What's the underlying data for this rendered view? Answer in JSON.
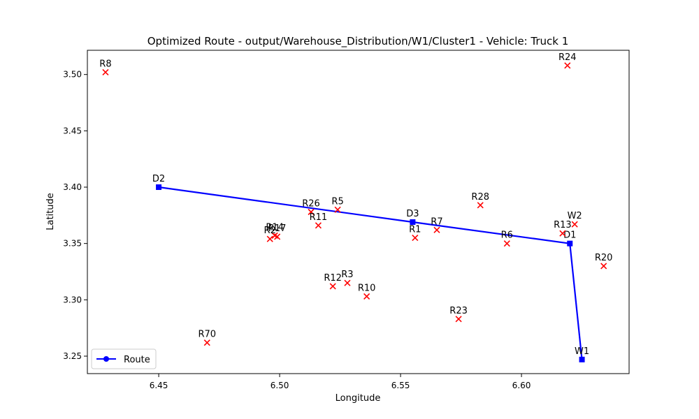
{
  "chart_data": {
    "type": "scatter",
    "title": "Optimized Route - output/Warehouse_Distribution/W1/Cluster1 - Vehicle: Truck 1",
    "xlabel": "Longitude",
    "ylabel": "Latitude",
    "xlim": [
      6.4205,
      6.6445
    ],
    "ylim": [
      3.2345,
      3.5215
    ],
    "xticks": [
      "6.45",
      "6.50",
      "6.55",
      "6.60"
    ],
    "xtick_values": [
      6.45,
      6.5,
      6.55,
      6.6
    ],
    "yticks": [
      "3.25",
      "3.30",
      "3.35",
      "3.40",
      "3.45",
      "3.50"
    ],
    "ytick_values": [
      3.25,
      3.3,
      3.35,
      3.4,
      3.45,
      3.5
    ],
    "grid": false,
    "legend": {
      "position": "lower-left",
      "entries": [
        "Route"
      ]
    },
    "colors": {
      "route": "#0000ff",
      "points": "#ff0000"
    },
    "route": {
      "name": "Route",
      "points": [
        {
          "label": "D2",
          "x": 6.45,
          "y": 3.4
        },
        {
          "label": "D3",
          "x": 6.555,
          "y": 3.369
        },
        {
          "label": "D1",
          "x": 6.62,
          "y": 3.35
        },
        {
          "label": "W1",
          "x": 6.625,
          "y": 3.247
        }
      ]
    },
    "points": [
      {
        "label": "R8",
        "x": 6.428,
        "y": 3.502
      },
      {
        "label": "R24",
        "x": 6.619,
        "y": 3.508
      },
      {
        "label": "R28",
        "x": 6.583,
        "y": 3.384
      },
      {
        "label": "R26",
        "x": 6.513,
        "y": 3.378
      },
      {
        "label": "R5",
        "x": 6.524,
        "y": 3.38
      },
      {
        "label": "R11",
        "x": 6.516,
        "y": 3.366
      },
      {
        "label": "R14",
        "x": 6.498,
        "y": 3.357
      },
      {
        "label": "R17",
        "x": 6.499,
        "y": 3.356
      },
      {
        "label": "R2",
        "x": 6.496,
        "y": 3.354
      },
      {
        "label": "R1",
        "x": 6.556,
        "y": 3.355
      },
      {
        "label": "R7",
        "x": 6.565,
        "y": 3.362
      },
      {
        "label": "R6",
        "x": 6.594,
        "y": 3.35
      },
      {
        "label": "R13",
        "x": 6.617,
        "y": 3.359
      },
      {
        "label": "W2",
        "x": 6.622,
        "y": 3.367
      },
      {
        "label": "R20",
        "x": 6.634,
        "y": 3.33
      },
      {
        "label": "R12",
        "x": 6.522,
        "y": 3.312
      },
      {
        "label": "R3",
        "x": 6.528,
        "y": 3.315
      },
      {
        "label": "R10",
        "x": 6.536,
        "y": 3.303
      },
      {
        "label": "R23",
        "x": 6.574,
        "y": 3.283
      },
      {
        "label": "R70",
        "x": 6.47,
        "y": 3.262
      }
    ]
  }
}
